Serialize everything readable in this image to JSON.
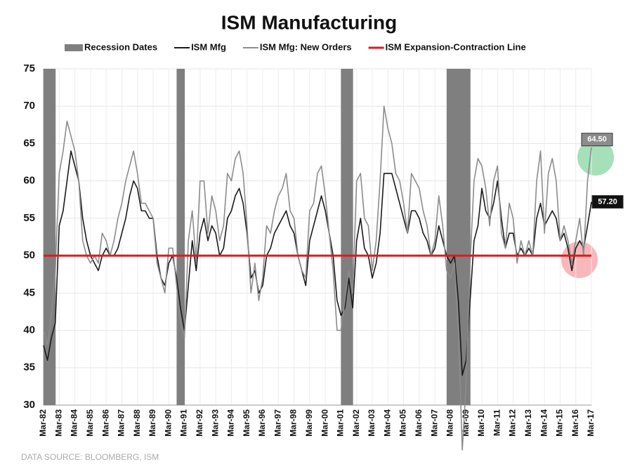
{
  "chart_data": {
    "type": "line",
    "title": "ISM Manufacturing",
    "source": "DATA SOURCE:  BLOOMBERG, ISM",
    "categories": [
      "Mar-82",
      null,
      null,
      null,
      "Mar-83",
      null,
      null,
      null,
      "Mar-84",
      null,
      null,
      null,
      "Mar-85",
      null,
      null,
      null,
      "Mar-86",
      null,
      null,
      null,
      "Mar-87",
      null,
      null,
      null,
      "Mar-88",
      null,
      null,
      null,
      "Mar-89",
      null,
      null,
      null,
      "Mar-90",
      null,
      null,
      null,
      "Mar-91",
      null,
      null,
      null,
      "Mar-92",
      null,
      null,
      null,
      "Mar-93",
      null,
      null,
      null,
      "Mar-94",
      null,
      null,
      null,
      "Mar-95",
      null,
      null,
      null,
      "Mar-96",
      null,
      null,
      null,
      "Mar-97",
      null,
      null,
      null,
      "Mar-98",
      null,
      null,
      null,
      "Mar-99",
      null,
      null,
      null,
      "Mar-00",
      null,
      null,
      null,
      "Mar-01",
      null,
      null,
      null,
      "Mar-02",
      null,
      null,
      null,
      "Mar-03",
      null,
      null,
      null,
      "Mar-04",
      null,
      null,
      null,
      "Mar-05",
      null,
      null,
      null,
      "Mar-06",
      null,
      null,
      null,
      "Mar-07",
      null,
      null,
      null,
      "Mar-08",
      null,
      null,
      null,
      "Mar-09",
      null,
      null,
      null,
      "Mar-10",
      null,
      null,
      null,
      "Mar-11",
      null,
      null,
      null,
      "Mar-12",
      null,
      null,
      null,
      "Mar-13",
      null,
      null,
      null,
      "Mar-14",
      null,
      null,
      null,
      "Mar-15",
      null,
      null,
      null,
      "Mar-16",
      null,
      null,
      null,
      "Mar-17"
    ],
    "series": [
      {
        "name": "Recession Dates",
        "type": "bar",
        "color": "#7f7f7f",
        "values": [
          75,
          75,
          75,
          null,
          null,
          null,
          null,
          null,
          null,
          null,
          null,
          null,
          null,
          null,
          null,
          null,
          null,
          null,
          null,
          null,
          null,
          null,
          null,
          null,
          null,
          null,
          null,
          null,
          null,
          null,
          null,
          null,
          null,
          null,
          75,
          75,
          null,
          null,
          null,
          null,
          null,
          null,
          null,
          null,
          null,
          null,
          null,
          null,
          null,
          null,
          null,
          null,
          null,
          null,
          null,
          null,
          null,
          null,
          null,
          null,
          null,
          null,
          null,
          null,
          null,
          null,
          null,
          null,
          null,
          null,
          null,
          null,
          null,
          null,
          null,
          null,
          75,
          75,
          75,
          null,
          null,
          null,
          null,
          null,
          null,
          null,
          null,
          null,
          null,
          null,
          null,
          null,
          null,
          null,
          null,
          null,
          null,
          null,
          null,
          null,
          null,
          null,
          null,
          75,
          75,
          75,
          75,
          75,
          75,
          null,
          null,
          null,
          null,
          null,
          null,
          null,
          null,
          null,
          null,
          null,
          null,
          null,
          null,
          null,
          null,
          null,
          null,
          null,
          null,
          null,
          null,
          null,
          null,
          null,
          null,
          null,
          null,
          null,
          null,
          null,
          null
        ]
      },
      {
        "name": "ISM Mfg",
        "type": "line",
        "color": "#1a1a1a",
        "values": [
          38,
          36,
          39,
          41,
          54,
          56,
          60,
          64,
          62,
          60,
          55,
          52,
          50,
          49,
          48,
          50,
          51,
          50,
          50,
          51,
          53,
          55,
          58,
          60,
          59,
          56,
          56,
          55,
          55,
          50,
          47,
          46,
          49,
          50,
          47,
          43,
          40,
          46,
          52,
          48,
          53,
          55,
          52,
          54,
          53,
          50,
          51,
          55,
          56,
          58,
          59,
          57,
          53,
          47,
          48,
          45,
          46,
          50,
          51,
          53,
          54,
          55,
          56,
          54,
          53,
          50,
          48,
          46,
          52,
          54,
          56,
          58,
          56,
          53,
          50,
          44,
          42,
          43,
          47,
          43,
          52,
          55,
          51,
          50,
          47,
          49,
          53,
          61,
          61,
          61,
          59,
          57,
          55,
          53,
          56,
          56,
          55,
          53,
          52,
          50,
          51,
          54,
          52,
          50,
          49,
          50,
          44,
          34,
          36,
          44,
          52,
          54,
          59,
          56,
          55,
          57,
          60,
          55,
          51,
          53,
          53,
          50,
          51,
          50,
          51,
          50,
          55,
          57,
          54,
          55,
          56,
          55,
          52,
          53,
          51,
          48,
          51,
          52,
          51,
          54,
          57.2
        ]
      },
      {
        "name": "ISM Mfg: New Orders",
        "type": "line",
        "color": "#8c8c8c",
        "values": [
          40,
          38,
          42,
          48,
          61,
          64,
          68,
          66,
          64,
          60,
          52,
          50,
          49,
          50,
          49,
          53,
          52,
          50,
          52,
          55,
          57,
          60,
          62,
          64,
          61,
          57,
          57,
          56,
          55,
          49,
          47,
          45,
          51,
          51,
          46,
          41,
          39,
          52,
          56,
          49,
          60,
          60,
          53,
          58,
          56,
          52,
          54,
          61,
          60,
          63,
          64,
          61,
          54,
          45,
          49,
          44,
          47,
          54,
          53,
          56,
          58,
          59,
          61,
          56,
          55,
          50,
          48,
          47,
          56,
          57,
          61,
          62,
          58,
          53,
          48,
          40,
          40,
          44,
          48,
          45,
          60,
          61,
          55,
          54,
          48,
          52,
          60,
          70,
          67,
          65,
          61,
          60,
          57,
          53,
          61,
          60,
          59,
          56,
          54,
          50,
          52,
          58,
          54,
          48,
          47,
          49,
          40,
          24,
          33,
          49,
          60,
          63,
          62,
          59,
          54,
          60,
          62,
          53,
          51,
          57,
          55,
          49,
          52,
          50,
          52,
          50,
          60,
          64,
          53,
          61,
          63,
          60,
          52,
          54,
          52,
          49,
          52,
          55,
          50,
          60,
          64.5
        ]
      }
    ],
    "reference_line": {
      "name": "ISM Expansion-Contraction Line",
      "value": 50,
      "color": "#e0191b"
    },
    "annotations": [
      {
        "text": "64.50",
        "value": 64.5
      },
      {
        "text": "57.20",
        "value": 57.2
      }
    ],
    "ylim": [
      30,
      75
    ],
    "yticks": [
      30,
      35,
      40,
      45,
      50,
      55,
      60,
      65,
      70,
      75
    ],
    "grid": true
  }
}
